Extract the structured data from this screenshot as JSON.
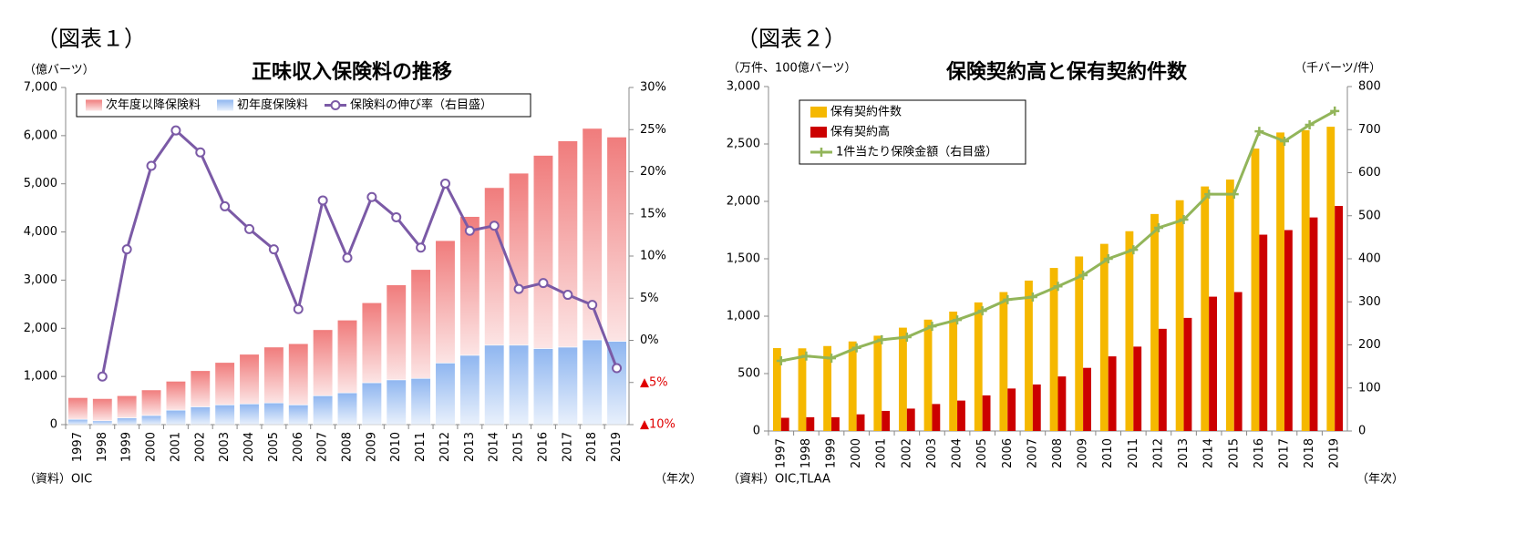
{
  "chart_data": [
    {
      "type": "combo",
      "figure_label": "（図表１）",
      "title": "正味収入保険料の推移",
      "ylabel": "（億バーツ）",
      "xlabel": "（年次）",
      "source": "（資料）OIC",
      "categories": [
        "1997",
        "1998",
        "1999",
        "2000",
        "2001",
        "2002",
        "2003",
        "2004",
        "2005",
        "2006",
        "2007",
        "2008",
        "2009",
        "2010",
        "2011",
        "2012",
        "2013",
        "2014",
        "2015",
        "2016",
        "2017",
        "2018",
        "2019"
      ],
      "stacked": true,
      "legend": "top",
      "grid": false,
      "ylim": [
        0,
        7000
      ],
      "yticks": [
        0,
        {
          "value": 1000,
          "label": "1,000"
        },
        {
          "value": 2000,
          "label": "2,000"
        },
        {
          "value": 3000,
          "label": "3,000"
        },
        {
          "value": 4000,
          "label": "4,000"
        },
        {
          "value": 5000,
          "label": "5,000"
        },
        {
          "value": 6000,
          "label": "6,000"
        },
        {
          "value": 7000,
          "label": "7,000"
        }
      ],
      "y2lim": [
        -10,
        30
      ],
      "y2ticks": [
        {
          "value": -10,
          "label": "▲10%"
        },
        {
          "value": -5,
          "label": "▲5%"
        },
        {
          "value": 0,
          "label": "0%"
        },
        {
          "value": 5,
          "label": "5%"
        },
        {
          "value": 10,
          "label": "10%"
        },
        {
          "value": 15,
          "label": "15%"
        },
        {
          "value": 20,
          "label": "20%"
        },
        {
          "value": 25,
          "label": "25%"
        },
        {
          "value": 30,
          "label": "30%"
        }
      ],
      "y2_negative_color": "#e00000",
      "series": [
        {
          "name": "次年度以降保険料",
          "kind": "bar",
          "color": "#f07c7c",
          "legend_order": 0,
          "values": [
            450,
            460,
            460,
            530,
            600,
            750,
            880,
            1030,
            1160,
            1270,
            1370,
            1510,
            1660,
            1970,
            2260,
            2540,
            2880,
            3270,
            3570,
            4010,
            4280,
            4390,
            4240
          ]
        },
        {
          "name": "初年度保険料",
          "kind": "bar",
          "color": "#8fb6f0",
          "legend_order": 1,
          "values": [
            110,
            80,
            140,
            190,
            300,
            370,
            410,
            430,
            450,
            410,
            600,
            660,
            870,
            930,
            960,
            1280,
            1440,
            1650,
            1650,
            1580,
            1610,
            1760,
            1730
          ]
        },
        {
          "name": "保険料の伸び率（右目盛）",
          "kind": "line",
          "axis": "y2",
          "marker": "circle",
          "color": "#7b5aa6",
          "legend_order": 2,
          "values": [
            null,
            -4.3,
            10.8,
            20.7,
            24.9,
            22.3,
            15.9,
            13.2,
            10.8,
            3.7,
            16.6,
            9.8,
            17.0,
            14.6,
            11.0,
            18.6,
            13.0,
            13.6,
            6.1,
            6.8,
            5.4,
            4.2,
            -3.3
          ]
        }
      ]
    },
    {
      "type": "combo",
      "figure_label": "（図表２）",
      "title": "保険契約高と保有契約件数",
      "ylabel": "（万件、100億バーツ）",
      "y2label": "（千バーツ/件）",
      "xlabel": "（年次）",
      "source": "（資料）OIC,TLAA",
      "categories": [
        "1997",
        "1998",
        "1999",
        "2000",
        "2001",
        "2002",
        "2003",
        "2004",
        "2005",
        "2006",
        "2007",
        "2008",
        "2009",
        "2010",
        "2011",
        "2012",
        "2013",
        "2014",
        "2015",
        "2016",
        "2017",
        "2018",
        "2019"
      ],
      "stacked": false,
      "legend": "upper left",
      "grid": false,
      "ylim": [
        0,
        3000
      ],
      "yticks": [
        0,
        500,
        {
          "value": 1000,
          "label": "1,000"
        },
        {
          "value": 1500,
          "label": "1,500"
        },
        {
          "value": 2000,
          "label": "2,000"
        },
        {
          "value": 2500,
          "label": "2,500"
        },
        {
          "value": 3000,
          "label": "3,000"
        }
      ],
      "y2lim": [
        0,
        800
      ],
      "y2ticks": [
        0,
        100,
        200,
        300,
        400,
        500,
        600,
        700,
        800
      ],
      "series": [
        {
          "name": "保有契約件数",
          "kind": "bar",
          "color": "#f5b800",
          "values": [
            722,
            720,
            740,
            780,
            830,
            900,
            970,
            1040,
            1120,
            1210,
            1310,
            1420,
            1520,
            1630,
            1740,
            1890,
            2010,
            2130,
            2190,
            2460,
            2600,
            2620,
            2650
          ]
        },
        {
          "name": "保有契約高",
          "kind": "bar",
          "color": "#cc0000",
          "values": [
            115,
            120,
            120,
            145,
            175,
            195,
            235,
            265,
            310,
            370,
            405,
            475,
            550,
            650,
            735,
            890,
            985,
            1170,
            1210,
            1710,
            1750,
            1860,
            1960
          ]
        },
        {
          "name": "1件当たり保険金額（右目盛）",
          "kind": "line",
          "axis": "y2",
          "marker": "plus",
          "color": "#92b55a",
          "values": [
            163,
            174,
            169,
            193,
            212,
            218,
            243,
            258,
            279,
            305,
            311,
            336,
            362,
            400,
            421,
            472,
            491,
            550,
            550,
            696,
            673,
            711,
            743
          ]
        }
      ]
    }
  ]
}
